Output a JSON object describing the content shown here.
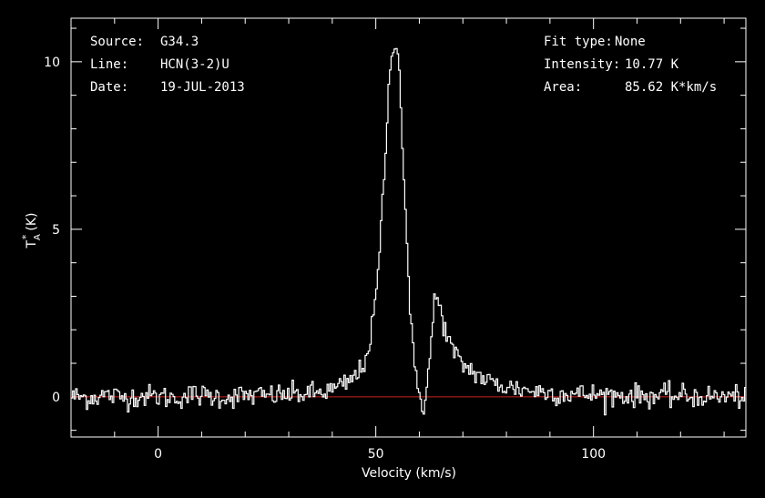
{
  "chart_data": {
    "type": "line",
    "xlabel": "Velocity (km/s)",
    "ylabel": {
      "main": "T",
      "sub": "A",
      "sup": "*",
      "unit": "(K)"
    },
    "xlim": [
      -20,
      135
    ],
    "ylim": [
      -1.2,
      11.3
    ],
    "x_ticks": [
      0,
      50,
      100
    ],
    "y_ticks": [
      0,
      5,
      10
    ],
    "x_minor_step": 10,
    "y_minor_step": 1,
    "baseline": 0,
    "colors": {
      "background": "#000000",
      "spectrum": "#ffffff",
      "baseline": "#cc2222",
      "frame": "#ffffff"
    },
    "info_left": [
      {
        "key": "Source:",
        "value": "G34.3"
      },
      {
        "key": "Line:",
        "value": "HCN(3-2)U"
      },
      {
        "key": "Date:",
        "value": "19-JUL-2013"
      }
    ],
    "info_right": [
      {
        "key": "Fit type:",
        "value": "None"
      },
      {
        "key": "Intensity:",
        "value": "10.77 K"
      },
      {
        "key": "Area:",
        "value": "85.62 K*km/s"
      }
    ],
    "series": [
      {
        "x": [
          -20,
          -16,
          -12,
          -8,
          -4,
          0,
          4,
          8,
          12,
          16,
          20,
          24,
          28,
          32,
          36,
          38,
          40,
          42,
          44,
          46,
          47,
          48,
          49,
          50,
          51,
          52,
          53,
          54,
          54.5,
          55,
          55.5,
          56,
          57,
          58,
          59,
          60,
          61,
          62,
          63,
          63.5,
          64,
          65,
          66,
          67,
          68,
          69,
          70,
          72,
          74,
          76,
          78,
          80,
          84,
          88,
          92,
          96,
          100,
          104,
          108,
          112,
          116,
          120,
          124,
          128,
          132,
          135
        ],
        "y": [
          0.02,
          -0.03,
          0.05,
          -0.02,
          0.03,
          0.01,
          -0.04,
          0.06,
          0.02,
          -0.01,
          0.04,
          0.03,
          0.05,
          0.08,
          0.1,
          0.15,
          0.2,
          0.3,
          0.45,
          0.7,
          0.9,
          1.3,
          1.9,
          2.9,
          4.5,
          6.8,
          9.2,
          10.5,
          10.77,
          10.5,
          9.5,
          8.0,
          5.0,
          2.4,
          0.6,
          0.1,
          -0.3,
          0.6,
          2.0,
          2.9,
          3.0,
          2.5,
          2.0,
          1.6,
          1.3,
          1.1,
          0.95,
          0.8,
          0.6,
          0.45,
          0.35,
          0.3,
          0.22,
          0.15,
          0.1,
          0.08,
          0.06,
          0.05,
          0.04,
          0.03,
          0.02,
          0.02,
          0.01,
          0.0,
          0.01,
          0.0
        ]
      }
    ]
  }
}
